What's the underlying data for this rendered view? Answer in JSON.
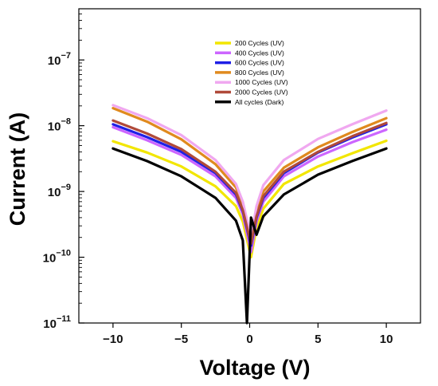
{
  "chart_data": {
    "type": "line",
    "xlabel": "Voltage (V)",
    "ylabel": "Current (A)",
    "xlim": [
      -12.5,
      12.5
    ],
    "ylim": [
      1e-11,
      6e-07
    ],
    "y_scale": "log",
    "x_ticks": [
      -10,
      -5,
      0,
      5,
      10
    ],
    "x_tick_labels": [
      "−10",
      "−5",
      "0",
      "5",
      "10"
    ],
    "y_ticks": [
      1e-11,
      1e-10,
      1e-09,
      1e-08,
      1e-07
    ],
    "y_tick_labels": [
      {
        "base": "10",
        "exp": "−11"
      },
      {
        "base": "10",
        "exp": "−10"
      },
      {
        "base": "10",
        "exp": "−9"
      },
      {
        "base": "10",
        "exp": "−8"
      },
      {
        "base": "10",
        "exp": "−7"
      }
    ],
    "grid": false,
    "legend_position": "top-center",
    "series": [
      {
        "name": "200 Cycles (UV)",
        "color": "#f2e600",
        "x": [
          -10,
          -7.5,
          -5,
          -2.5,
          -1,
          -0.5,
          0.1,
          0.5,
          1,
          2.5,
          5,
          7.5,
          10
        ],
        "y": [
          5.8e-09,
          3.9e-09,
          2.4e-09,
          1.2e-09,
          6e-10,
          3.5e-10,
          1e-10,
          2.8e-10,
          5.5e-10,
          1.3e-09,
          2.4e-09,
          3.8e-09,
          5.9e-09
        ]
      },
      {
        "name": "400 Cycles (UV)",
        "color": "#cc66ff",
        "x": [
          -10,
          -7.5,
          -5,
          -2.5,
          -1,
          -0.5,
          0.1,
          0.5,
          1,
          2.5,
          5,
          7.5,
          10
        ],
        "y": [
          9.5e-09,
          6e-09,
          3.6e-09,
          1.7e-09,
          8e-10,
          4.5e-10,
          1.2e-10,
          3.5e-10,
          7e-10,
          1.7e-09,
          3.4e-09,
          5.6e-09,
          8.7e-09
        ]
      },
      {
        "name": "600 Cycles (UV)",
        "color": "#1f1fe6",
        "x": [
          -10,
          -7.5,
          -5,
          -2.5,
          -1,
          -0.5,
          0.1,
          0.5,
          1,
          2.5,
          5,
          7.5,
          10
        ],
        "y": [
          1.05e-08,
          6.7e-09,
          4e-09,
          1.9e-09,
          9e-10,
          5e-10,
          1.5e-10,
          4e-10,
          8e-10,
          1.9e-09,
          3.9e-09,
          6.6e-09,
          1.05e-08
        ]
      },
      {
        "name": "800 Cycles (UV)",
        "color": "#e08a1e",
        "x": [
          -10,
          -7.5,
          -5,
          -2.5,
          -1,
          -0.5,
          0.1,
          0.5,
          1,
          2.5,
          5,
          7.5,
          10
        ],
        "y": [
          1.85e-08,
          1.15e-08,
          6.2e-09,
          2.6e-09,
          1.15e-09,
          6e-10,
          1.8e-10,
          5e-10,
          1e-09,
          2.3e-09,
          4.7e-09,
          8e-09,
          1.3e-08
        ]
      },
      {
        "name": "1000 Cycles (UV)",
        "color": "#f0a8f0",
        "x": [
          -10,
          -7.5,
          -5,
          -2.5,
          -1,
          -0.5,
          0.1,
          0.5,
          1,
          2.5,
          5,
          7.5,
          10
        ],
        "y": [
          2.05e-08,
          1.3e-08,
          7.2e-09,
          3e-09,
          1.3e-09,
          7e-10,
          2e-10,
          6e-10,
          1.25e-09,
          3e-09,
          6.3e-09,
          1.05e-08,
          1.7e-08
        ]
      },
      {
        "name": "2000 Cycles (UV)",
        "color": "#b04a3a",
        "x": [
          -10,
          -7.5,
          -5,
          -2.5,
          -1,
          -0.5,
          0.1,
          0.5,
          1,
          2.5,
          5,
          7.5,
          10
        ],
        "y": [
          1.2e-08,
          7.6e-09,
          4.4e-09,
          2e-09,
          9.5e-10,
          5.2e-10,
          1.6e-10,
          4.2e-10,
          8.5e-10,
          2e-09,
          4e-09,
          6.9e-09,
          1.1e-08
        ]
      },
      {
        "name": "All cycles (Dark)",
        "color": "#000000",
        "x": [
          -10,
          -7.5,
          -5,
          -2.5,
          -1,
          -0.5,
          -0.2,
          0.1,
          0.5,
          1,
          2.5,
          5,
          7.5,
          10
        ],
        "y": [
          4.5e-09,
          2.9e-09,
          1.7e-09,
          8e-10,
          3.6e-10,
          1.8e-10,
          1e-11,
          4e-10,
          2.2e-10,
          4.2e-10,
          9e-10,
          1.8e-09,
          2.9e-09,
          4.5e-09
        ]
      }
    ]
  }
}
